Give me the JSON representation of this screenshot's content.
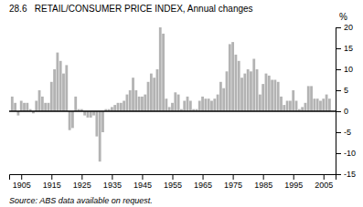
{
  "chart_data": {
    "type": "bar",
    "title": "28.6   RETAIL/CONSUMER PRICE INDEX, Annual changes",
    "ylabel": "%",
    "annotation": "Source: ABS data available on request.",
    "color": "#b3b3b3",
    "grid": false,
    "xlim": [
      1901,
      2009
    ],
    "xticks": [
      1905,
      1915,
      1925,
      1935,
      1945,
      1955,
      1965,
      1975,
      1985,
      1995,
      2005
    ],
    "ylim": [
      -15,
      20
    ],
    "yticks": [
      -15,
      -10,
      -5,
      0,
      5,
      10,
      15,
      20
    ],
    "x": [
      1902,
      1903,
      1904,
      1905,
      1906,
      1907,
      1908,
      1909,
      1910,
      1911,
      1912,
      1913,
      1914,
      1915,
      1916,
      1917,
      1918,
      1919,
      1920,
      1921,
      1922,
      1923,
      1924,
      1925,
      1926,
      1927,
      1928,
      1929,
      1930,
      1931,
      1932,
      1933,
      1934,
      1935,
      1936,
      1937,
      1938,
      1939,
      1940,
      1941,
      1942,
      1943,
      1944,
      1945,
      1946,
      1947,
      1948,
      1949,
      1950,
      1951,
      1952,
      1953,
      1954,
      1955,
      1956,
      1957,
      1958,
      1959,
      1960,
      1961,
      1962,
      1963,
      1964,
      1965,
      1966,
      1967,
      1968,
      1969,
      1970,
      1971,
      1972,
      1973,
      1974,
      1975,
      1976,
      1977,
      1978,
      1979,
      1980,
      1981,
      1982,
      1983,
      1984,
      1985,
      1986,
      1987,
      1988,
      1989,
      1990,
      1991,
      1992,
      1993,
      1994,
      1995,
      1996,
      1997,
      1998,
      1999,
      2000,
      2001,
      2002,
      2003,
      2004,
      2005,
      2006,
      2007
    ],
    "values": [
      3.5,
      2.0,
      -1.0,
      2.5,
      2.0,
      2.0,
      0.5,
      -0.5,
      2.5,
      5.0,
      3.5,
      2.0,
      2.0,
      7.0,
      10.0,
      14.0,
      12.0,
      9.0,
      11.0,
      -4.5,
      -4.0,
      3.5,
      0.5,
      0.5,
      -1.0,
      -1.5,
      -1.5,
      -1.0,
      -6.0,
      -12.0,
      -5.0,
      0.5,
      0.5,
      1.0,
      1.5,
      2.0,
      2.0,
      2.5,
      4.0,
      5.0,
      8.0,
      5.0,
      3.5,
      3.5,
      4.0,
      7.0,
      9.0,
      8.0,
      10.0,
      20.0,
      18.5,
      3.0,
      1.0,
      2.0,
      4.5,
      4.0,
      0.5,
      2.5,
      3.5,
      2.5,
      0.5,
      0.5,
      2.5,
      3.5,
      3.0,
      3.0,
      2.5,
      3.0,
      4.0,
      7.0,
      5.5,
      9.5,
      16.0,
      16.5,
      13.5,
      12.0,
      8.0,
      9.0,
      10.0,
      9.5,
      12.5,
      10.0,
      4.0,
      6.5,
      9.0,
      8.5,
      7.5,
      7.5,
      7.0,
      3.5,
      1.5,
      2.5,
      2.5,
      5.0,
      2.5,
      0.5,
      1.0,
      2.0,
      6.0,
      6.0,
      3.0,
      3.0,
      2.5,
      3.0,
      4.0,
      3.0
    ]
  }
}
